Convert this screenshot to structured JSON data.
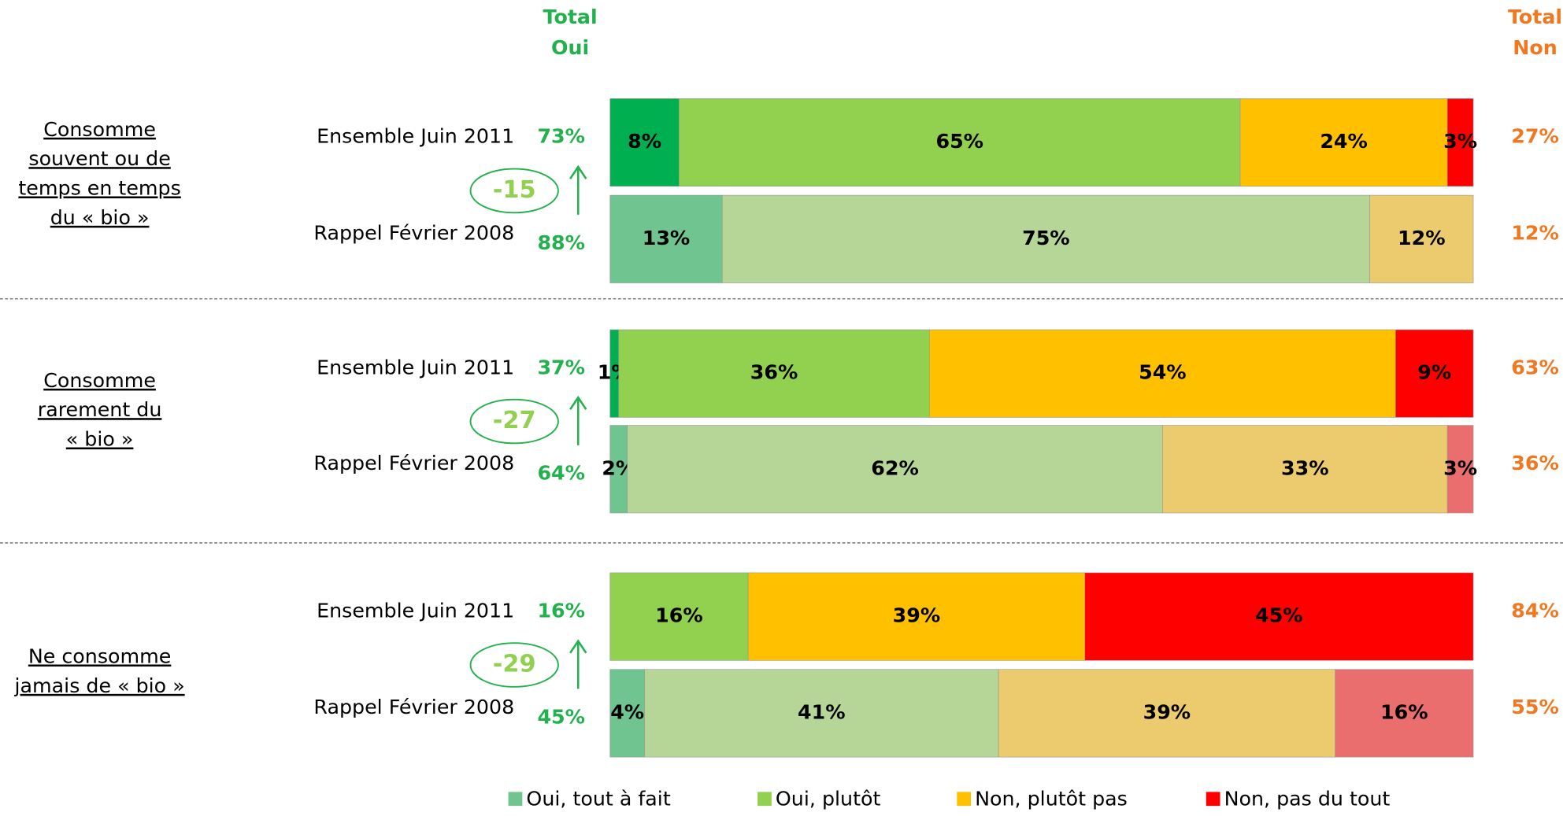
{
  "chart_data": {
    "type": "stacked-bar",
    "header_oui": [
      "Total",
      "Oui"
    ],
    "header_non": [
      "Total",
      "Non"
    ],
    "xlim": [
      0,
      100
    ],
    "series": [
      {
        "name": "Oui, tout à fait",
        "color": "#70c490"
      },
      {
        "name": "Oui, plutôt",
        "color": "#92d050"
      },
      {
        "name": "Non, plutôt pas",
        "color": "#ffc000"
      },
      {
        "name": "Non, pas du tout",
        "color": "#ff0000"
      }
    ],
    "groups": [
      {
        "label": [
          "Consomme",
          "souvent ou de",
          "temps en temps",
          "du « bio »"
        ],
        "delta": -15,
        "rows": [
          {
            "name": "Ensemble Juin 2011",
            "total_oui": 73,
            "total_oui_label": "73%",
            "total_non": 27,
            "total_non_label": "27%",
            "values": [
              8,
              65,
              24,
              3
            ],
            "value_labels": [
              "8%",
              "65%",
              "24%",
              "3%"
            ],
            "colors": [
              "#00b050",
              "#92d050",
              "#ffc000",
              "#ff0000"
            ]
          },
          {
            "name": "Rappel Février 2008",
            "total_oui": 88,
            "total_oui_label": "88%",
            "total_non": 12,
            "total_non_label": "12%",
            "values": [
              13,
              75,
              12,
              null
            ],
            "value_labels": [
              "13%",
              "75%",
              "12%",
              null
            ],
            "colors": [
              "#70c490",
              "#b6d698",
              "#ebcb6e",
              "#ea6e6e"
            ]
          }
        ]
      },
      {
        "label": [
          "Consomme",
          "rarement du",
          "« bio »"
        ],
        "delta": -27,
        "rows": [
          {
            "name": "Ensemble Juin 2011",
            "total_oui": 37,
            "total_oui_label": "37%",
            "total_non": 63,
            "total_non_label": "63%",
            "values": [
              1,
              36,
              54,
              9
            ],
            "value_labels": [
              "1%",
              "36%",
              "54%",
              "9%"
            ],
            "colors": [
              "#00b050",
              "#92d050",
              "#ffc000",
              "#ff0000"
            ]
          },
          {
            "name": "Rappel Février 2008",
            "total_oui": 64,
            "total_oui_label": "64%",
            "total_non": 36,
            "total_non_label": "36%",
            "values": [
              2,
              62,
              33,
              3
            ],
            "value_labels": [
              "2%",
              "62%",
              "33%",
              "3%"
            ],
            "colors": [
              "#70c490",
              "#b6d698",
              "#ebcb6e",
              "#ea6e6e"
            ]
          }
        ]
      },
      {
        "label": [
          "Ne consomme",
          "jamais de « bio »"
        ],
        "delta": -29,
        "rows": [
          {
            "name": "Ensemble Juin 2011",
            "total_oui": 16,
            "total_oui_label": "16%",
            "total_non": 84,
            "total_non_label": "84%",
            "values": [
              null,
              16,
              39,
              45
            ],
            "value_labels": [
              null,
              "16%",
              "39%",
              "45%"
            ],
            "colors": [
              "#00b050",
              "#92d050",
              "#ffc000",
              "#ff0000"
            ]
          },
          {
            "name": "Rappel Février 2008",
            "total_oui": 45,
            "total_oui_label": "45%",
            "total_non": 55,
            "total_non_label": "55%",
            "values": [
              4,
              41,
              39,
              16
            ],
            "value_labels": [
              "4%",
              "41%",
              "39%",
              "16%"
            ],
            "colors": [
              "#70c490",
              "#b6d698",
              "#ebcb6e",
              "#ea6e6e"
            ]
          }
        ]
      }
    ]
  }
}
